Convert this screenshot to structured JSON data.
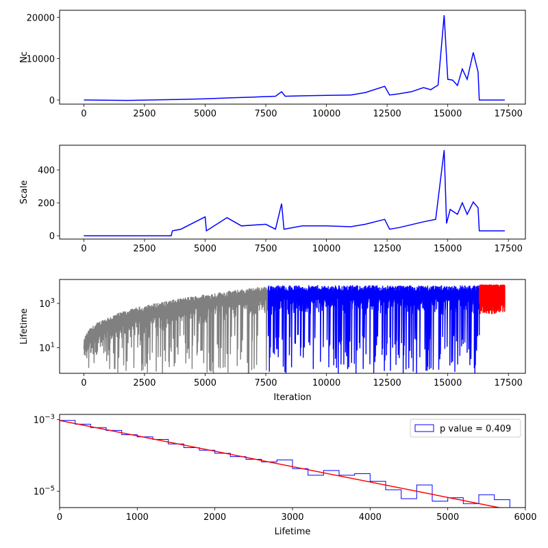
{
  "chart_data": [
    {
      "type": "line",
      "ylabel": "Nc",
      "xlim": [
        -1000,
        18200
      ],
      "ylim": [
        -1000,
        21700
      ],
      "xticks": [
        0,
        2500,
        5000,
        7500,
        10000,
        12500,
        15000,
        17500
      ],
      "xtick_labels": [
        "0",
        "2500",
        "5000",
        "7500",
        "10000",
        "12500",
        "15000",
        "17500"
      ],
      "yticks": [
        0,
        10000,
        20000
      ],
      "ytick_labels": [
        "0",
        "10000",
        "20000"
      ],
      "colors": {
        "series": "#0000ff"
      },
      "series": [
        {
          "x": [
            0,
            1800,
            3600,
            4000,
            5000,
            6000,
            7000,
            7900,
            8150,
            8300,
            9000,
            10000,
            11000,
            11600,
            12400,
            12600,
            13000,
            13500,
            14000,
            14300,
            14600,
            14850,
            15000,
            15200,
            15400,
            15600,
            15800,
            16050,
            16250,
            16300,
            17350
          ],
          "y": [
            0,
            -100,
            100,
            150,
            300,
            500,
            700,
            900,
            2000,
            900,
            1000,
            1100,
            1200,
            1800,
            3300,
            1200,
            1500,
            2000,
            3000,
            2500,
            3600,
            20500,
            5000,
            4800,
            3500,
            7500,
            5000,
            11500,
            6800,
            0,
            0
          ]
        }
      ]
    },
    {
      "type": "line",
      "ylabel": "Scale",
      "xlim": [
        -1000,
        18200
      ],
      "ylim": [
        -20,
        550
      ],
      "xticks": [
        0,
        2500,
        5000,
        7500,
        10000,
        12500,
        15000,
        17500
      ],
      "xtick_labels": [
        "0",
        "2500",
        "5000",
        "7500",
        "10000",
        "12500",
        "15000",
        "17500"
      ],
      "yticks": [
        0,
        200,
        400
      ],
      "ytick_labels": [
        "0",
        "200",
        "400"
      ],
      "colors": {
        "series": "#0000ff"
      },
      "series": [
        {
          "x": [
            0,
            3600,
            3650,
            4000,
            5000,
            5050,
            5900,
            6500,
            7500,
            7900,
            8150,
            8250,
            9000,
            10000,
            11000,
            11600,
            12400,
            12600,
            13000,
            14000,
            14500,
            14850,
            14950,
            15100,
            15400,
            15600,
            15800,
            16050,
            16250,
            16300,
            17350
          ],
          "y": [
            0,
            0,
            30,
            40,
            115,
            30,
            110,
            60,
            70,
            40,
            195,
            40,
            60,
            60,
            55,
            70,
            100,
            40,
            50,
            85,
            100,
            520,
            75,
            160,
            130,
            200,
            130,
            205,
            170,
            30,
            30
          ]
        }
      ]
    },
    {
      "type": "line",
      "ylabel": "Lifetime",
      "xlabel": "Iteration",
      "yscale": "log",
      "xlim": [
        -1000,
        18200
      ],
      "ylim": [
        0.7,
        12000
      ],
      "xticks": [
        0,
        2500,
        5000,
        7500,
        10000,
        12500,
        15000,
        17500
      ],
      "xtick_labels": [
        "0",
        "2500",
        "5000",
        "7500",
        "10000",
        "12500",
        "15000",
        "17500"
      ],
      "yticks": [
        10,
        1000
      ],
      "ytick_labels": [
        "10^1",
        "10^3"
      ],
      "colors": {
        "burnin": "#808080",
        "main": "#0000ff",
        "tail": "#ff0000"
      },
      "segments": [
        {
          "x_start": 0,
          "x_end": 7600,
          "color_key": "burnin",
          "upper_start": 10,
          "upper_end": 6000
        },
        {
          "x_start": 7600,
          "x_end": 16300,
          "color_key": "main",
          "upper_start": 6000,
          "upper_end": 6000
        },
        {
          "x_start": 16300,
          "x_end": 17350,
          "color_key": "tail",
          "upper_start": 6500,
          "upper_end": 6500
        }
      ]
    },
    {
      "type": "step",
      "xlabel": "Lifetime",
      "yscale": "log",
      "xlim": [
        0,
        6000
      ],
      "ylim": [
        3.5e-06,
        0.0014
      ],
      "xticks": [
        0,
        1000,
        2000,
        3000,
        4000,
        5000,
        6000
      ],
      "xtick_labels": [
        "0",
        "1000",
        "2000",
        "3000",
        "4000",
        "5000",
        "6000"
      ],
      "yticks": [
        1e-05,
        0.001
      ],
      "ytick_labels": [
        "10^-5",
        "10^-3"
      ],
      "legend": {
        "label": "p value = 0.409",
        "placement": "top-right"
      },
      "colors": {
        "hist": "#0000ff",
        "fit": "#ff0000"
      },
      "histogram": {
        "bin_edges": [
          0,
          200,
          400,
          600,
          800,
          1000,
          1200,
          1400,
          1600,
          1800,
          2000,
          2200,
          2400,
          2600,
          2800,
          3000,
          3200,
          3400,
          3600,
          3800,
          4000,
          4200,
          4400,
          4600,
          4800,
          5000,
          5200,
          5400,
          5600,
          5800,
          6000
        ],
        "counts": [
          0.00095,
          0.00075,
          0.0006,
          0.0005,
          0.00038,
          0.00033,
          0.00028,
          0.00021,
          0.000165,
          0.00014,
          0.000115,
          9.3e-05,
          7.8e-05,
          6.6e-05,
          7.5e-05,
          4.3e-05,
          2.8e-05,
          3.8e-05,
          2.8e-05,
          3.1e-05,
          1.9e-05,
          1.1e-05,
          6.2e-06,
          1.5e-05,
          5.3e-06,
          6.6e-06,
          4.5e-06,
          8e-06,
          5.8e-06,
          3.5e-06
        ]
      },
      "fit_line": {
        "x": [
          0,
          6000
        ],
        "y": [
          0.00095,
          2.5e-06
        ]
      }
    }
  ]
}
